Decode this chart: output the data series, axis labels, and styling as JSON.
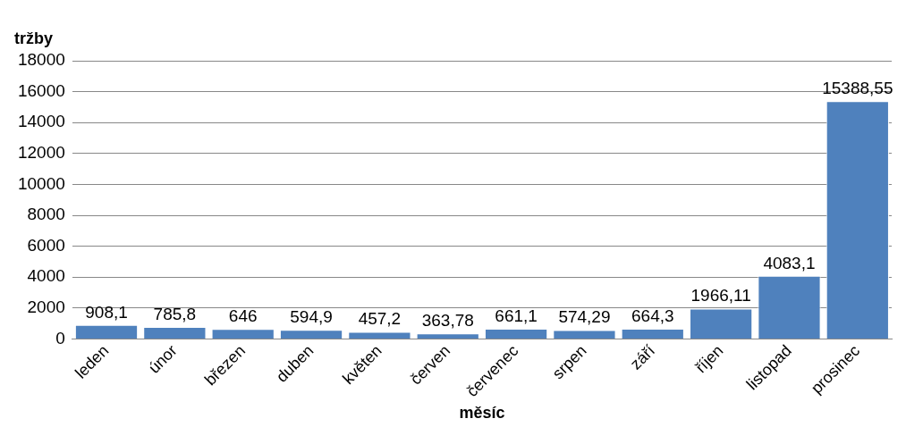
{
  "chart_data": {
    "type": "bar",
    "ylabel": "tržby",
    "xlabel": "měsíc",
    "categories": [
      "leden",
      "únor",
      "březen",
      "duben",
      "květen",
      "červen",
      "červenec",
      "srpen",
      "září",
      "říjen",
      "listopad",
      "prosinec"
    ],
    "values": [
      908.1,
      785.8,
      646,
      594.9,
      457.2,
      363.78,
      661.1,
      574.29,
      664.3,
      1966.11,
      4083.1,
      15388.55
    ],
    "value_labels": [
      "908,1",
      "785,8",
      "646",
      "594,9",
      "457,2",
      "363,78",
      "661,1",
      "574,29",
      "664,3",
      "1966,11",
      "4083,1",
      "15388,55"
    ],
    "color": "#4f81bd",
    "ylim": [
      0,
      18000
    ],
    "yticks": [
      0,
      2000,
      4000,
      6000,
      8000,
      10000,
      12000,
      14000,
      16000,
      18000
    ],
    "grid": "y",
    "legend": false
  }
}
